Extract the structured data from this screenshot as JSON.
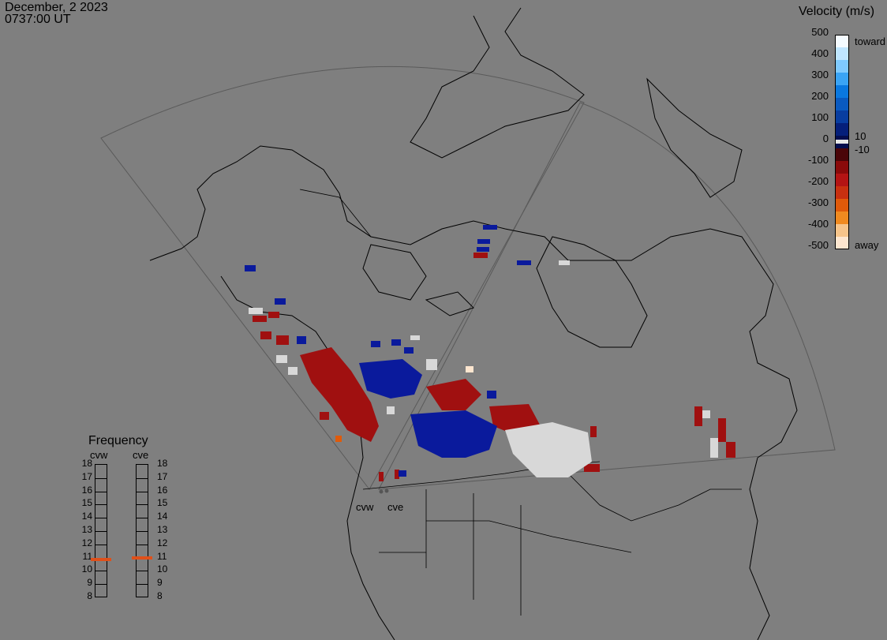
{
  "header": {
    "date": "December, 2 2023",
    "time": "0737:00 UT"
  },
  "velocity_scale": {
    "title": "Velocity (m/s)",
    "ticks": [
      "500",
      "400",
      "300",
      "200",
      "100",
      "0",
      "-100",
      "-200",
      "-300",
      "-400",
      "-500"
    ],
    "labels": {
      "toward": "toward",
      "away": "away",
      "pos_thresh": "10",
      "neg_thresh": "-10"
    },
    "colors": [
      "#f4fbff",
      "#bfe6ff",
      "#7fcaff",
      "#3aa4f5",
      "#0a78e0",
      "#0a5ac0",
      "#083da0",
      "#051f7a",
      "#050e4e",
      "#4a0508",
      "#8a0a0a",
      "#b41414",
      "#c83010",
      "#e05a0a",
      "#f08a20",
      "#f6c48a",
      "#fde6cf"
    ]
  },
  "frequency": {
    "title": "Frequency",
    "radars": [
      "cvw",
      "cve"
    ],
    "levels": [
      "18",
      "17",
      "16",
      "15",
      "14",
      "13",
      "12",
      "11",
      "10",
      "9",
      "8"
    ],
    "cvw_mhz": 10.8,
    "cve_mhz": 10.9,
    "marker_color": "#e0501a"
  },
  "radar_sites": [
    "cvw",
    "cve"
  ],
  "colors": {
    "background": "#7f7f7f",
    "toward": "#0a1a9c",
    "away": "#a01010",
    "ground": "#d8d8d8"
  }
}
